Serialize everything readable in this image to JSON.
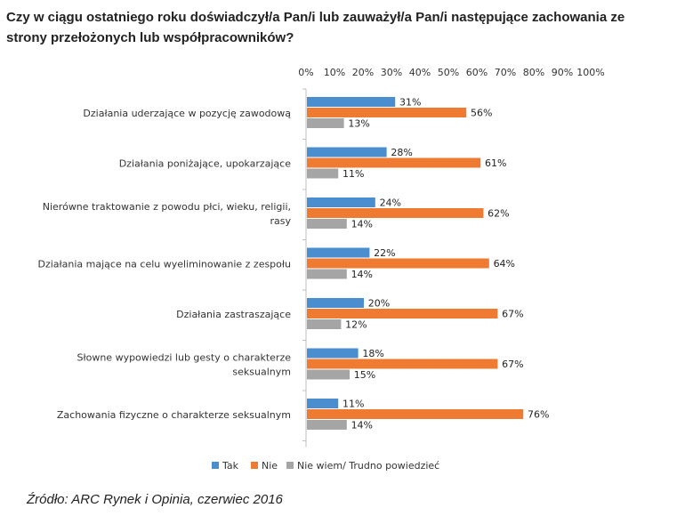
{
  "title": "Czy w ciągu ostatniego roku doświadczył/a Pan/i lub zauważył/a Pan/i następujące zachowania ze strony przełożonych lub współpracowników?",
  "source": "Źródło: ARC Rynek i Opinia, czerwiec 2016",
  "chart_data": {
    "type": "bar",
    "orientation": "horizontal",
    "categories": [
      [
        "Działania uderzające w pozycję zawodową"
      ],
      [
        "Działania poniżające, upokarzające"
      ],
      [
        "Nierówne traktowanie z powodu płci, wieku, religii,",
        "rasy"
      ],
      [
        "Działania mające na celu wyeliminowanie z zespołu"
      ],
      [
        "Działania zastraszające"
      ],
      [
        "Słowne wypowiedzi lub gesty o charakterze",
        "seksualnym"
      ],
      [
        "Zachowania fizyczne o charakterze seksualnym"
      ]
    ],
    "series": [
      {
        "name": "Tak",
        "color": "#4a8ed0",
        "values": [
          31,
          28,
          24,
          22,
          20,
          18,
          11
        ]
      },
      {
        "name": "Nie",
        "color": "#ee7b31",
        "values": [
          56,
          61,
          62,
          64,
          67,
          67,
          76
        ]
      },
      {
        "name": "Nie wiem/ Trudno powiedzieć",
        "color": "#a5a5a5",
        "values": [
          13,
          11,
          14,
          14,
          12,
          15,
          14
        ]
      }
    ],
    "value_suffix": "%",
    "xlim": [
      0,
      100
    ],
    "x_ticks": [
      "0%",
      "10%",
      "20%",
      "30%",
      "40%",
      "50%",
      "60%",
      "70%",
      "80%",
      "90%",
      "100%"
    ],
    "x_tick_values": [
      0,
      10,
      20,
      30,
      40,
      50,
      60,
      70,
      80,
      90,
      100
    ],
    "x_axis_position": "top",
    "grid": false,
    "legend_position": "bottom"
  }
}
